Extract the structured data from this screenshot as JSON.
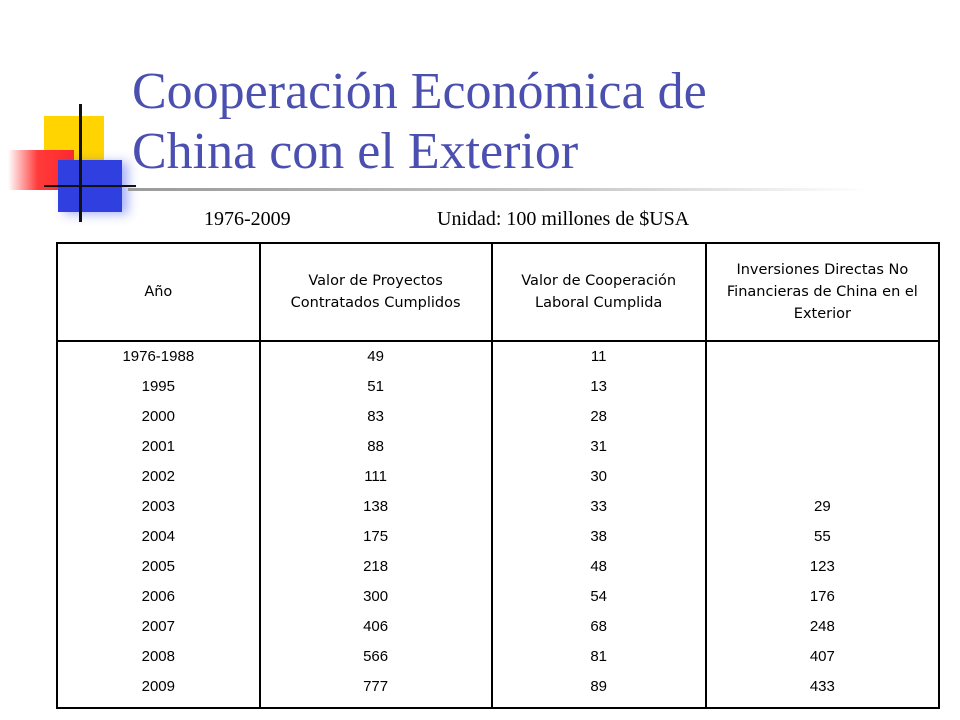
{
  "title_line1": "Cooperación Económica de",
  "title_line2": "China con el Exterior",
  "subtitle_years": "1976-2009",
  "subtitle_unit": "Unidad: 100 millones de $USA",
  "headers": [
    "Año",
    "Valor de Proyectos Contratados Cumplidos",
    "Valor de Cooperación Laboral Cumplida",
    "Inversiones Directas No Financieras de China  en el Exterior"
  ],
  "rows": [
    {
      "year": "1976-1988",
      "proyectos": "49",
      "laboral": "11",
      "inversiones": ""
    },
    {
      "year": "1995",
      "proyectos": "51",
      "laboral": "13",
      "inversiones": ""
    },
    {
      "year": "2000",
      "proyectos": "83",
      "laboral": "28",
      "inversiones": ""
    },
    {
      "year": "2001",
      "proyectos": "88",
      "laboral": "31",
      "inversiones": ""
    },
    {
      "year": "2002",
      "proyectos": "111",
      "laboral": "30",
      "inversiones": ""
    },
    {
      "year": "2003",
      "proyectos": "138",
      "laboral": "33",
      "inversiones": "29"
    },
    {
      "year": "2004",
      "proyectos": "175",
      "laboral": "38",
      "inversiones": "55"
    },
    {
      "year": "2005",
      "proyectos": "218",
      "laboral": "48",
      "inversiones": "123"
    },
    {
      "year": "2006",
      "proyectos": "300",
      "laboral": "54",
      "inversiones": "176"
    },
    {
      "year": "2007",
      "proyectos": "406",
      "laboral": "68",
      "inversiones": "248"
    },
    {
      "year": "2008",
      "proyectos": "566",
      "laboral": "81",
      "inversiones": "407"
    },
    {
      "year": "2009",
      "proyectos": "777",
      "laboral": "89",
      "inversiones": "433"
    }
  ],
  "colors": {
    "title": "#4a4fb0",
    "deco_yellow": "#ffd400",
    "deco_red": "#ff2a2a",
    "deco_blue": "#2f3fe0"
  }
}
